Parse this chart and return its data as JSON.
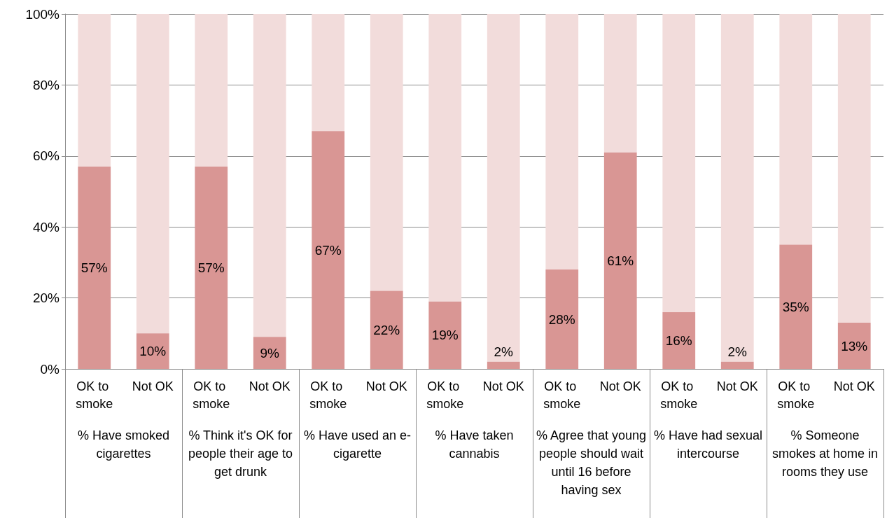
{
  "chart_data": {
    "type": "bar",
    "stacked": true,
    "categories": [
      "OK to smoke",
      "Not OK",
      "OK to smoke",
      "Not OK",
      "OK to smoke",
      "Not OK",
      "OK to smoke",
      "Not OK",
      "OK to smoke",
      "Not OK",
      "OK to smoke",
      "Not OK",
      "OK to smoke",
      "Not OK"
    ],
    "series": [
      {
        "color": "#d99694",
        "values": [
          57,
          10,
          57,
          9,
          67,
          22,
          19,
          2,
          28,
          61,
          16,
          2,
          35,
          13
        ],
        "value_labels": [
          "57%",
          "10%",
          "57%",
          "9%",
          "67%",
          "22%",
          "19%",
          "2%",
          "28%",
          "61%",
          "16%",
          "2%",
          "35%",
          "13%"
        ]
      },
      {
        "color": "#f2dcdb",
        "values": [
          43,
          90,
          43,
          91,
          33,
          78,
          81,
          98,
          72,
          39,
          84,
          98,
          65,
          87
        ]
      }
    ],
    "annotations": [
      "% Have smoked cigarettes",
      "% Think it's OK for people their age to get drunk",
      "% Have used an e-cigarette",
      "% Have taken cannabis",
      "% Agree that young people should wait until 16 before having sex",
      "% Have had sexual intercourse",
      "% Someone smokes at home in rooms they use"
    ],
    "ylim": [
      0,
      100
    ],
    "yticks": [
      {
        "value": 0,
        "label": "0%"
      },
      {
        "value": 20,
        "label": "20%"
      },
      {
        "value": 40,
        "label": "40%"
      },
      {
        "value": 60,
        "label": "60%"
      },
      {
        "value": 80,
        "label": "80%"
      },
      {
        "value": 100,
        "label": "100%"
      }
    ],
    "grid": "y"
  }
}
